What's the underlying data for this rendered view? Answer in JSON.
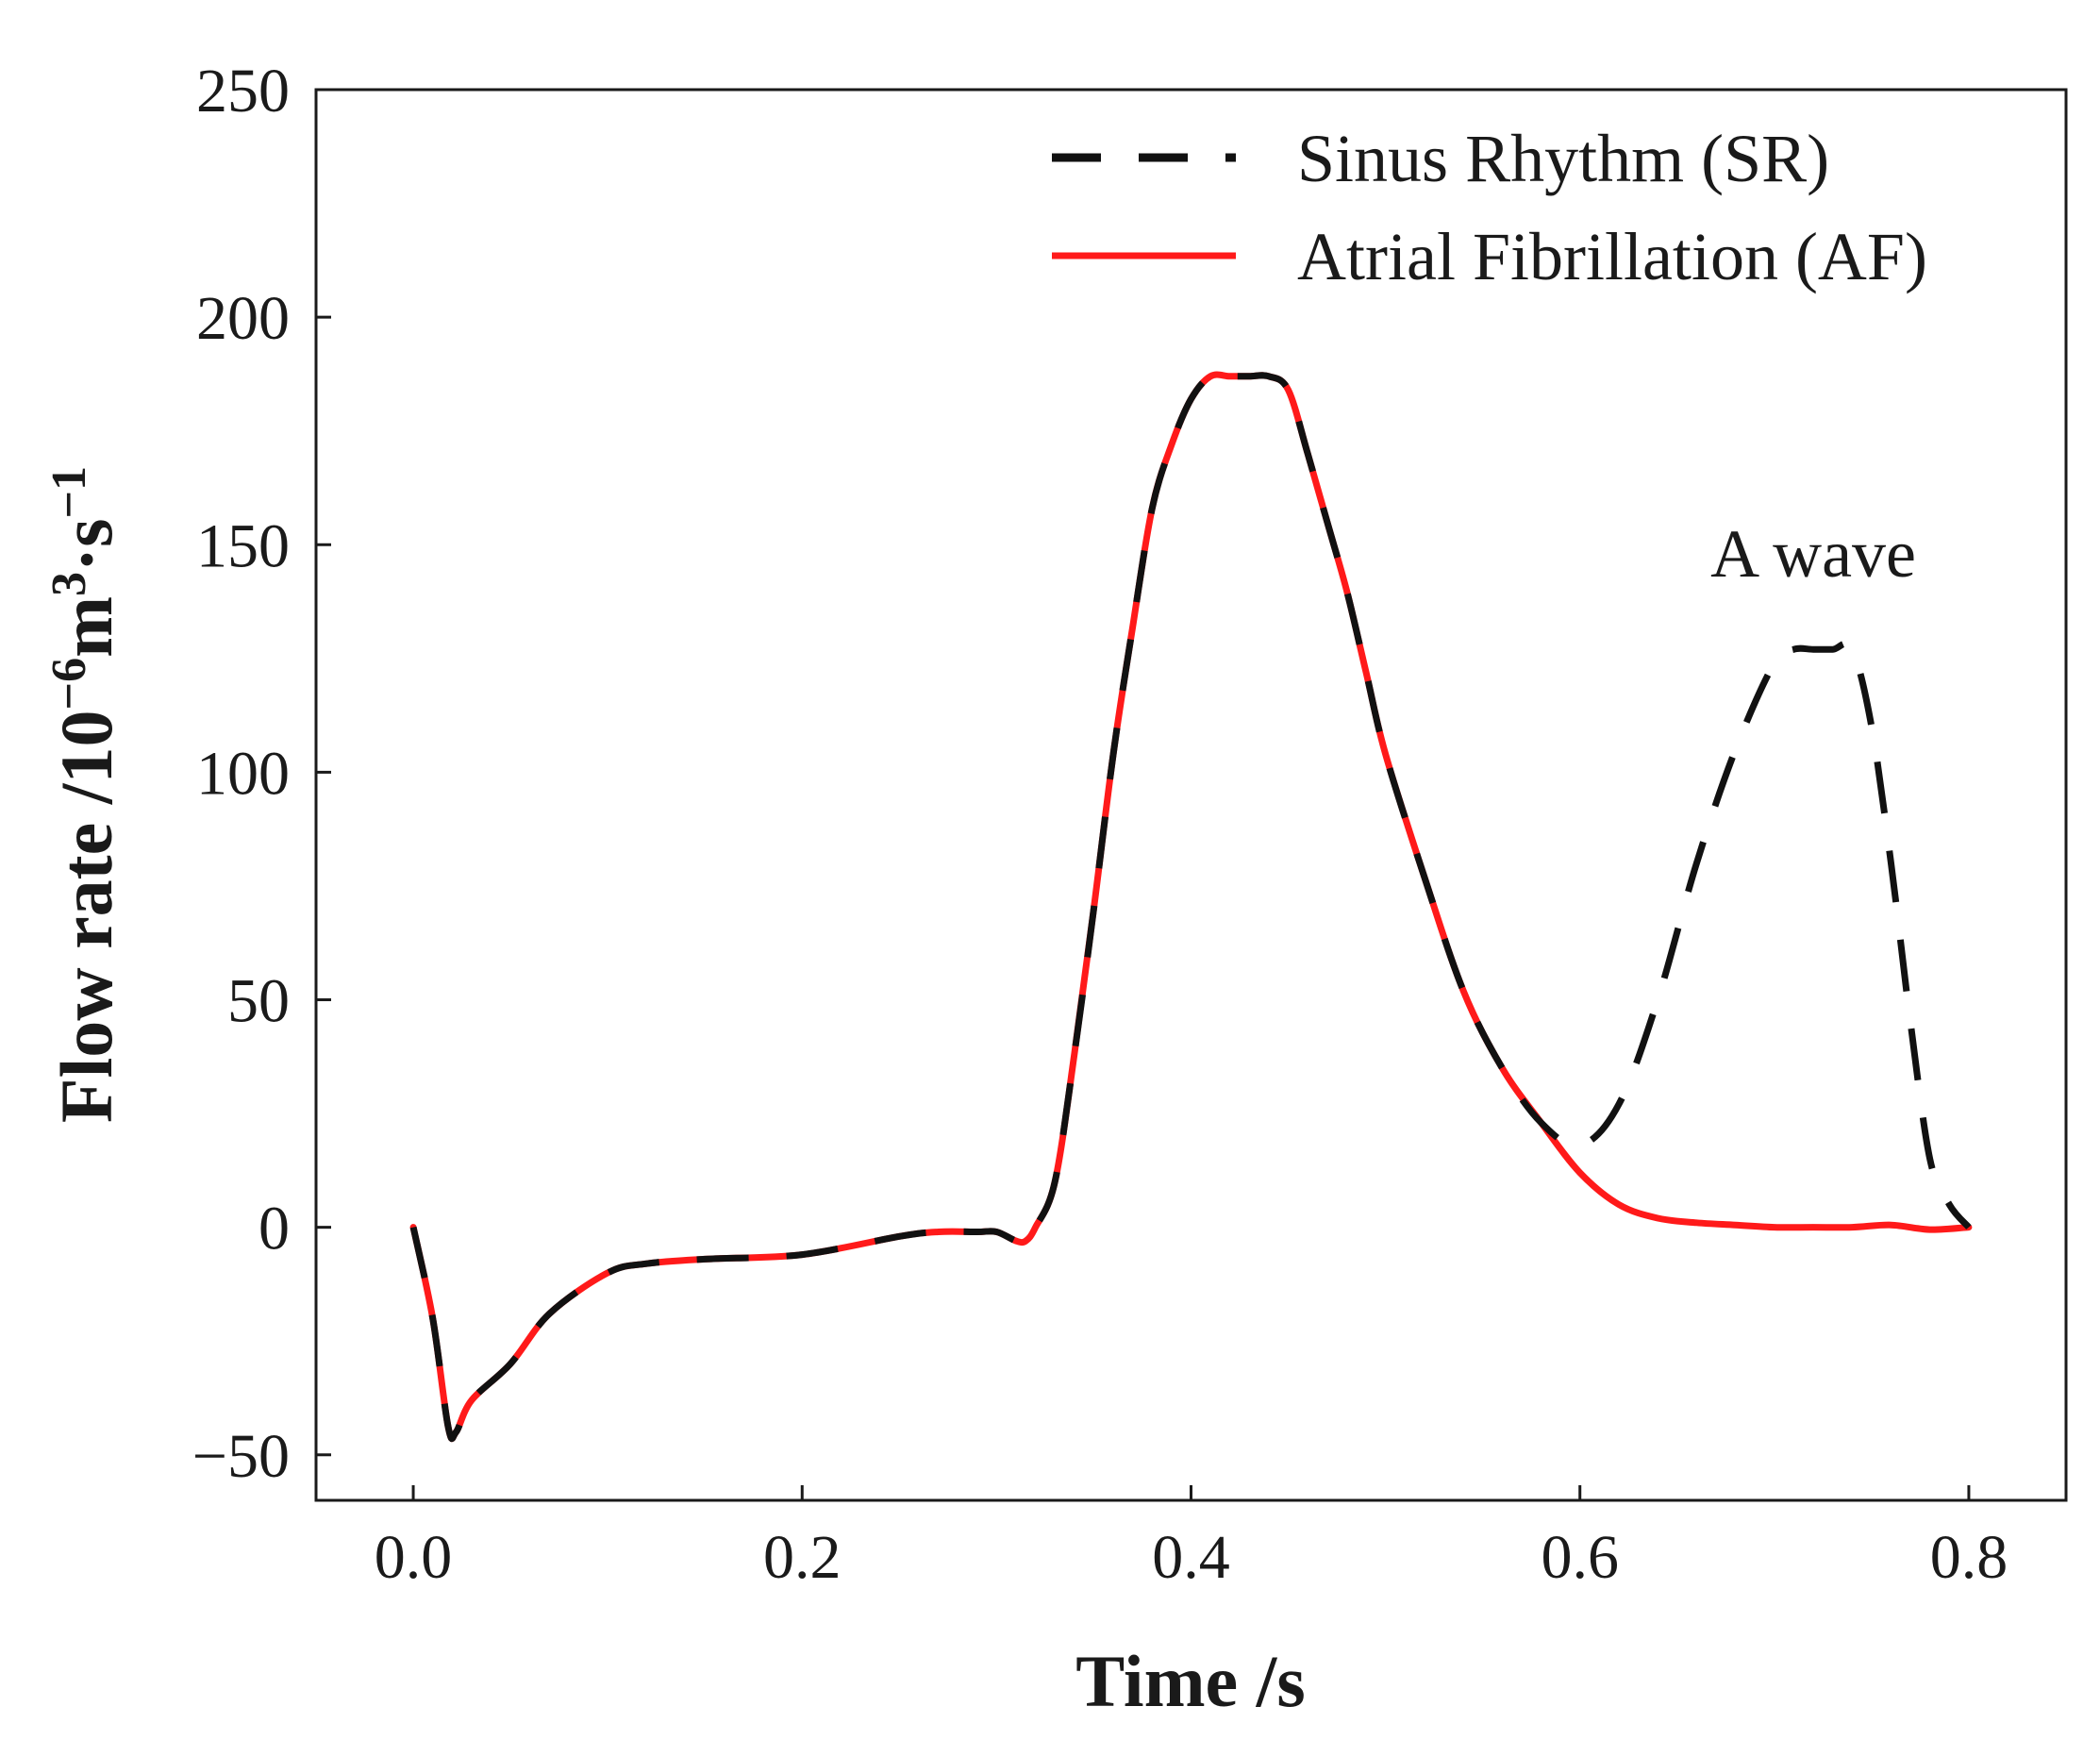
{
  "chart_data": {
    "type": "line",
    "title": "",
    "xlabel": "Time /s",
    "ylabel": {
      "main": "Flow rate /10",
      "exp1": "−6",
      "unit1": "m",
      "exp2": "3",
      "unit2": "·s",
      "exp3": "−1"
    },
    "xlim": [
      -0.05,
      0.85
    ],
    "ylim": [
      -60,
      250
    ],
    "xticks": [
      0.0,
      0.2,
      0.4,
      0.6,
      0.8
    ],
    "xtick_labels": [
      "0.0",
      "0.2",
      "0.4",
      "0.6",
      "0.8"
    ],
    "yticks": [
      -50,
      0,
      50,
      100,
      150,
      200,
      250
    ],
    "ytick_labels": [
      "−50",
      "0",
      "50",
      "100",
      "150",
      "200",
      "250"
    ],
    "grid": false,
    "legend_position": "top-right",
    "colors": {
      "sr": "#111111",
      "af": "#ff1a1a",
      "axis": "#1a1a1a"
    },
    "series": [
      {
        "name": "Sinus Rhythm (SR)",
        "style": "dashed",
        "x": [
          0.0,
          0.01,
          0.018,
          0.022,
          0.03,
          0.05,
          0.07,
          0.1,
          0.12,
          0.15,
          0.2,
          0.25,
          0.27,
          0.29,
          0.3,
          0.31,
          0.315,
          0.32,
          0.33,
          0.34,
          0.35,
          0.36,
          0.37,
          0.38,
          0.39,
          0.4,
          0.41,
          0.42,
          0.43,
          0.44,
          0.45,
          0.46,
          0.47,
          0.48,
          0.49,
          0.5,
          0.52,
          0.54,
          0.56,
          0.58,
          0.6,
          0.62,
          0.64,
          0.66,
          0.68,
          0.7,
          0.71,
          0.72,
          0.73,
          0.74,
          0.75,
          0.76,
          0.77,
          0.78,
          0.79,
          0.8
        ],
        "y": [
          0,
          -20,
          -44,
          -45,
          -38,
          -30,
          -19,
          -10,
          -8,
          -7,
          -6,
          -2,
          -1,
          -1,
          -1,
          -3,
          -3,
          0,
          10,
          38,
          70,
          104,
          132,
          158,
          172,
          182,
          187,
          187,
          187,
          187,
          184,
          170,
          155,
          140,
          122,
          104,
          77,
          52,
          35,
          23,
          18,
          27,
          50,
          80,
          105,
          124,
          127,
          127,
          127,
          127,
          110,
          80,
          45,
          15,
          5,
          0
        ]
      },
      {
        "name": "Atrial Fibrillation (AF)",
        "style": "solid",
        "x": [
          0.0,
          0.01,
          0.018,
          0.022,
          0.03,
          0.05,
          0.07,
          0.1,
          0.12,
          0.15,
          0.2,
          0.25,
          0.27,
          0.29,
          0.3,
          0.31,
          0.315,
          0.32,
          0.33,
          0.34,
          0.35,
          0.36,
          0.37,
          0.38,
          0.39,
          0.4,
          0.41,
          0.42,
          0.43,
          0.44,
          0.45,
          0.46,
          0.47,
          0.48,
          0.49,
          0.5,
          0.52,
          0.54,
          0.56,
          0.58,
          0.6,
          0.62,
          0.64,
          0.66,
          0.68,
          0.7,
          0.72,
          0.74,
          0.76,
          0.78,
          0.8
        ],
        "y": [
          0,
          -20,
          -44,
          -45,
          -38,
          -30,
          -19,
          -10,
          -8,
          -7,
          -6,
          -2,
          -1,
          -1,
          -1,
          -3,
          -3,
          0,
          10,
          38,
          70,
          104,
          132,
          158,
          172,
          182,
          187,
          187,
          187,
          187,
          184,
          170,
          155,
          140,
          122,
          104,
          77,
          52,
          35,
          23,
          12,
          5,
          2,
          1,
          0.5,
          0,
          0,
          0,
          0.5,
          -0.5,
          0
        ]
      }
    ],
    "annotations": [
      {
        "text": "A wave",
        "x": 0.72,
        "y": 143
      }
    ]
  }
}
